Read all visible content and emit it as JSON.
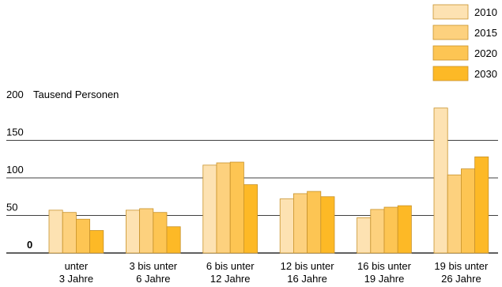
{
  "chart_data": {
    "type": "bar",
    "unit_label": "Tausend Personen",
    "categories": [
      [
        "unter",
        "3 Jahre"
      ],
      [
        "3 bis unter",
        "6 Jahre"
      ],
      [
        "6 bis unter",
        "12 Jahre"
      ],
      [
        "12 bis unter",
        "16 Jahre"
      ],
      [
        "16 bis unter",
        "19 Jahre"
      ],
      [
        "19 bis unter",
        "26 Jahre"
      ]
    ],
    "series": [
      {
        "name": "2010",
        "color": "#fde2b2",
        "values": [
          57,
          57,
          117,
          72,
          47,
          193
        ]
      },
      {
        "name": "2015",
        "color": "#fdd17e",
        "values": [
          54,
          59,
          120,
          79,
          58,
          104
        ]
      },
      {
        "name": "2020",
        "color": "#fdc553",
        "values": [
          45,
          54,
          121,
          82,
          61,
          112
        ]
      },
      {
        "name": "2030",
        "color": "#fdb926",
        "values": [
          30,
          35,
          91,
          75,
          63,
          128
        ]
      }
    ],
    "yticks": [
      0,
      50,
      100,
      150,
      200
    ],
    "ylim": [
      0,
      200
    ],
    "grid": true,
    "legend_position": "top-right",
    "bar_stroke": "#c8922a"
  }
}
